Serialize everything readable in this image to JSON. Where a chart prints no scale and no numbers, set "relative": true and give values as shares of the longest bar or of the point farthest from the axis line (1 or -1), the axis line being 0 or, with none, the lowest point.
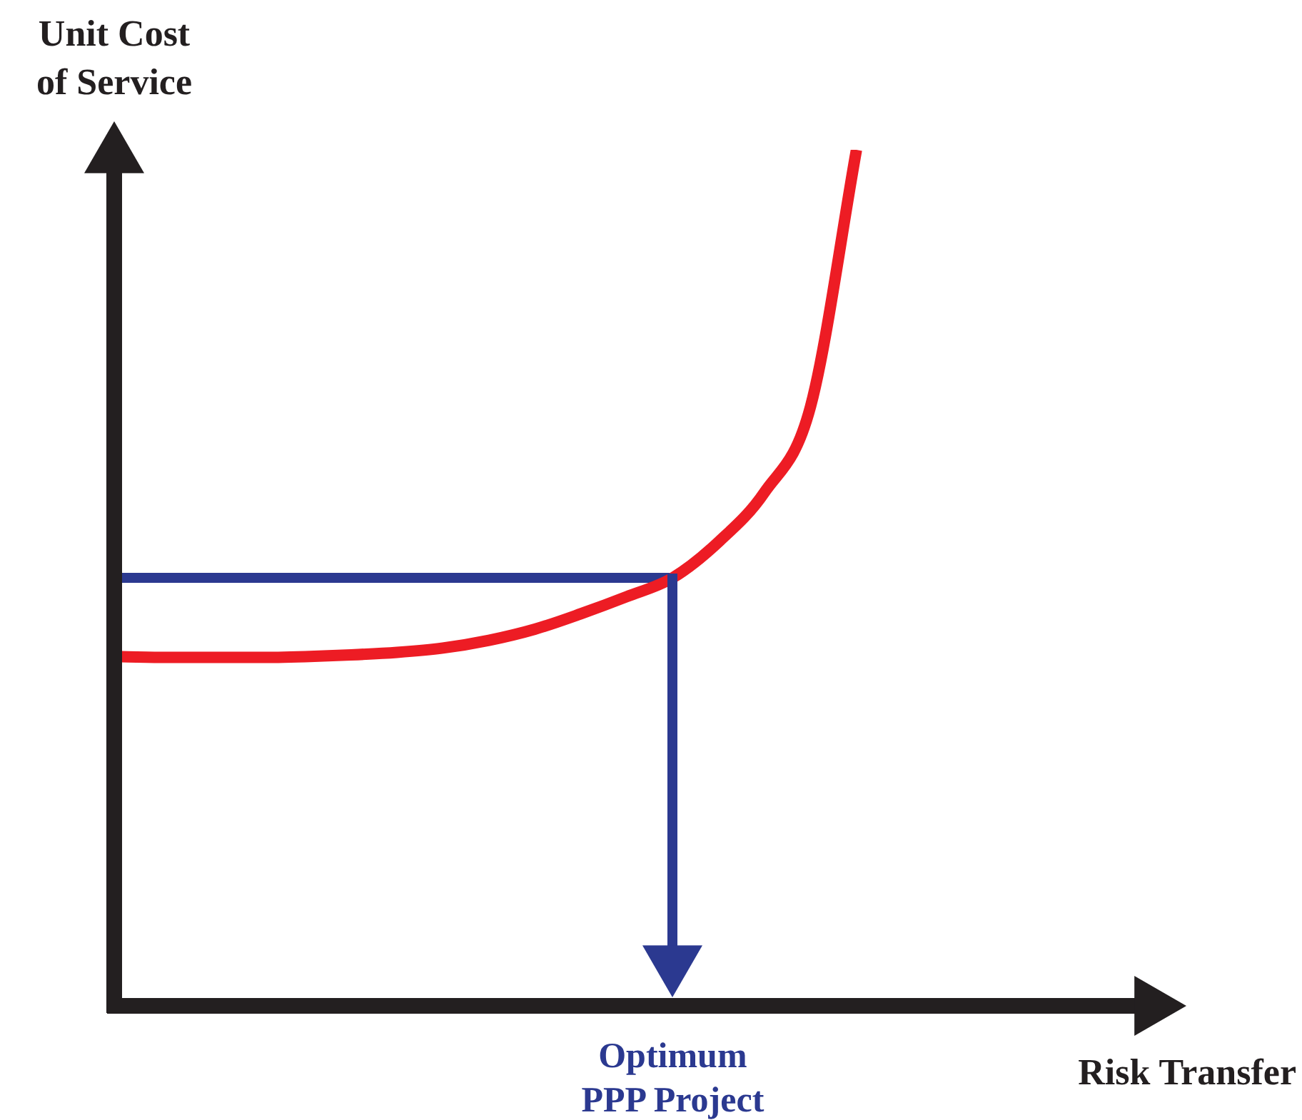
{
  "chart_data": {
    "type": "line",
    "relative": true,
    "ylabel": "Unit Cost of Service",
    "xlabel": "Risk Transfer",
    "categories": [
      null,
      null,
      null,
      null,
      null,
      null,
      null,
      null,
      null,
      null,
      null,
      null,
      null,
      null,
      null,
      null,
      null,
      null,
      null,
      null,
      null,
      null,
      null
    ],
    "series": [
      {
        "color": "#ed1c24",
        "values": [
          0.408,
          0.407,
          0.407,
          0.407,
          0.408,
          0.41,
          0.413,
          0.418,
          0.427,
          0.44,
          0.458,
          0.478,
          0.5,
          0.542,
          0.6,
          0.7,
          1.0,
          null,
          null,
          null,
          null,
          null,
          null
        ]
      }
    ],
    "ref_lines": [
      {
        "axis": "y",
        "value": 0.5,
        "color": "#2b3990"
      }
    ],
    "annotations": [
      "Optimum\nPPP Project"
    ],
    "legend": false,
    "marker": "none",
    "line_style": "solid"
  }
}
